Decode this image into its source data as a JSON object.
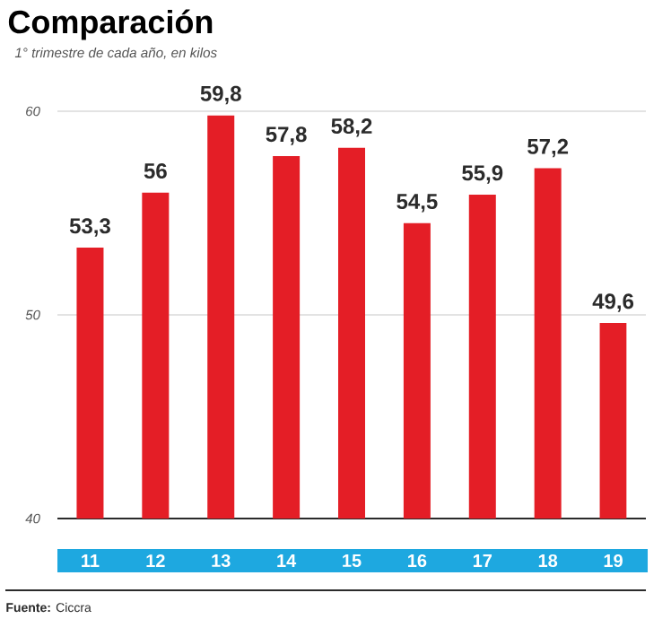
{
  "chart_data": {
    "type": "bar",
    "title": "Comparación",
    "subtitle": "1° trimestre de cada año, en kilos",
    "categories": [
      "11",
      "12",
      "13",
      "14",
      "15",
      "16",
      "17",
      "18",
      "19"
    ],
    "values": [
      53.3,
      56,
      59.8,
      57.8,
      58.2,
      54.5,
      55.9,
      57.2,
      49.6
    ],
    "value_labels": [
      "53,3",
      "56",
      "59,8",
      "57,8",
      "58,2",
      "54,5",
      "55,9",
      "57,2",
      "49,6"
    ],
    "color": "#e41e26",
    "ylim": [
      40,
      60
    ],
    "yticks": [
      40,
      50,
      60
    ],
    "grid": "y",
    "annotations": [
      "**Fuente:** Ciccra"
    ]
  }
}
